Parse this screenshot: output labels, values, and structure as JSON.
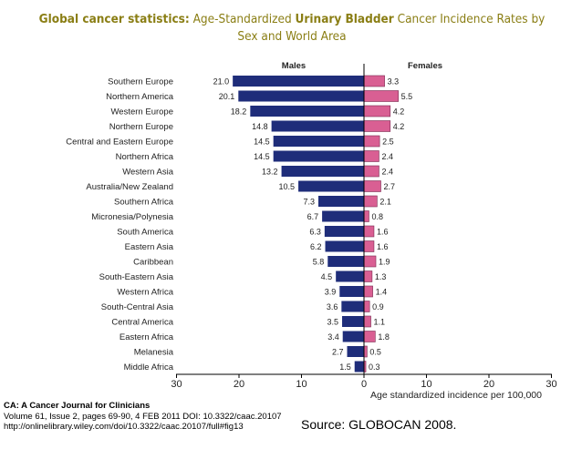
{
  "title": {
    "part1": "Global cancer statistics:",
    "part2": " Age-Standardized ",
    "part3": "Urinary Bladder",
    "part4": " Cancer Incidence Rates by Sex and World Area"
  },
  "chart_data": {
    "type": "bar",
    "orientation": "horizontal-butterfly",
    "categories": [
      "Southern Europe",
      "Northern America",
      "Western Europe",
      "Northern Europe",
      "Central and Eastern Europe",
      "Northern Africa",
      "Western Asia",
      "Australia/New Zealand",
      "Southern Africa",
      "Micronesia/Polynesia",
      "South America",
      "Eastern Asia",
      "Caribbean",
      "South-Eastern Asia",
      "Western Africa",
      "South-Central Asia",
      "Central America",
      "Eastern Africa",
      "Melanesia",
      "Middle Africa"
    ],
    "series": [
      {
        "name": "Males",
        "color": "#1f2d7a",
        "values": [
          21.0,
          20.1,
          18.2,
          14.8,
          14.5,
          14.5,
          13.2,
          10.5,
          7.3,
          6.7,
          6.3,
          6.2,
          5.8,
          4.5,
          3.9,
          3.6,
          3.5,
          3.4,
          2.7,
          1.5
        ]
      },
      {
        "name": "Females",
        "color": "#d95f93",
        "values": [
          3.3,
          5.5,
          4.2,
          4.2,
          2.5,
          2.4,
          2.4,
          2.7,
          2.1,
          0.8,
          1.6,
          1.6,
          1.9,
          1.3,
          1.4,
          0.9,
          1.1,
          1.8,
          0.5,
          0.3
        ]
      }
    ],
    "value_labels_males": [
      "21.0",
      "20.1",
      "18.2",
      "14.8",
      "14.5",
      "14.5",
      "13.2",
      "10.5",
      "7.3",
      "6.7",
      "6.3",
      "6.2",
      "5.8",
      "4.5",
      "3.9",
      "3.6",
      "3.5",
      "3.4",
      "2.7",
      "1.5"
    ],
    "value_labels_females": [
      "3.3",
      "5.5",
      "4.2",
      "4.2",
      "2.5",
      "2.4",
      "2.4",
      "2.7",
      "2.1",
      "0.8",
      "1.6",
      "1.6",
      "1.9",
      "1.3",
      "1.4",
      "0.9",
      "1.1",
      "1.8",
      "0.5",
      "0.3"
    ],
    "xlim": [
      -30,
      30
    ],
    "xticks": [
      -30,
      -20,
      -10,
      0,
      10,
      20,
      30
    ],
    "xtick_labels": [
      "30",
      "20",
      "10",
      "0",
      "10",
      "20",
      "30"
    ],
    "xlabel": "Age standardized incidence per 100,000",
    "grid": false
  },
  "footer": {
    "journal": "CA: A Cancer Journal for Clinicians",
    "citation": "Volume 61, Issue 2, pages 69-90, 4 FEB 2011 DOI: 10.3322/caac.20107",
    "url": "http://onlinelibrary.wiley.com/doi/10.3322/caac.20107/full#fig13",
    "source": "Source: GLOBOCAN 2008."
  }
}
